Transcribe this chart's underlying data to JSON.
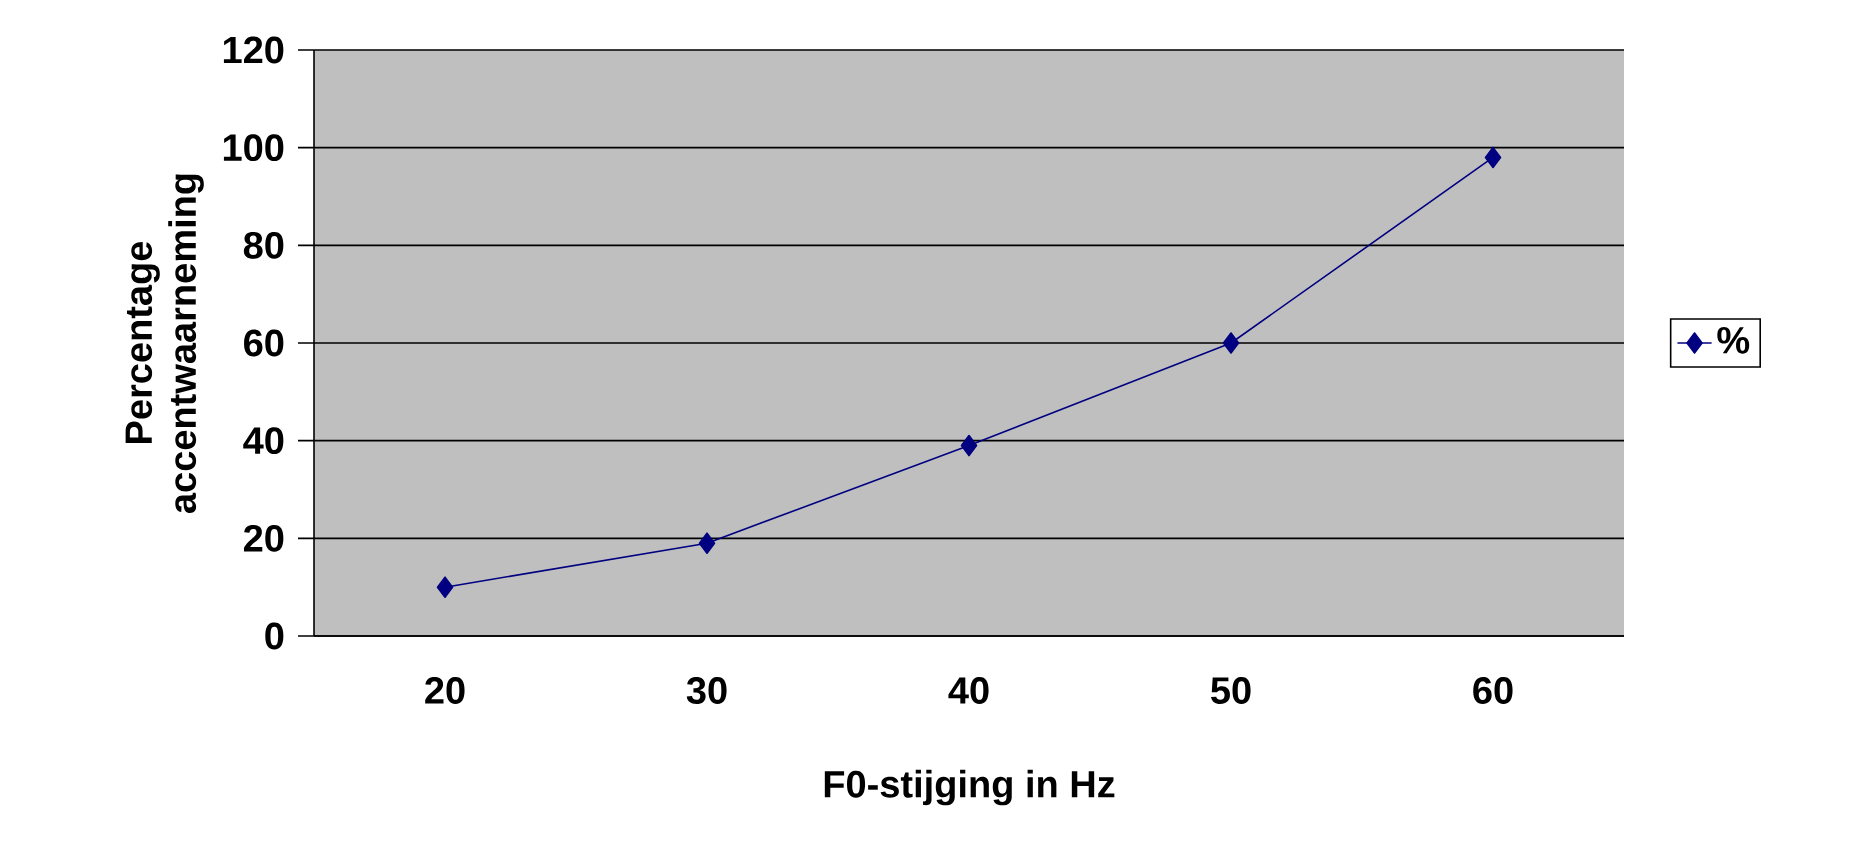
{
  "chart_data": {
    "type": "line",
    "xlabel": "F0-stijging in Hz",
    "ylabel": "Percentage accentwaarneming",
    "categories": [
      "20",
      "30",
      "40",
      "50",
      "60"
    ],
    "series": [
      {
        "name": "%",
        "color": "#000080",
        "values": [
          10,
          19,
          39,
          60,
          98
        ]
      }
    ],
    "ylim": [
      0,
      120
    ],
    "yticks": [
      0,
      20,
      40,
      60,
      80,
      100,
      120
    ],
    "grid": "y",
    "legend": "right",
    "marker": "diamond",
    "line_style": "solid"
  }
}
